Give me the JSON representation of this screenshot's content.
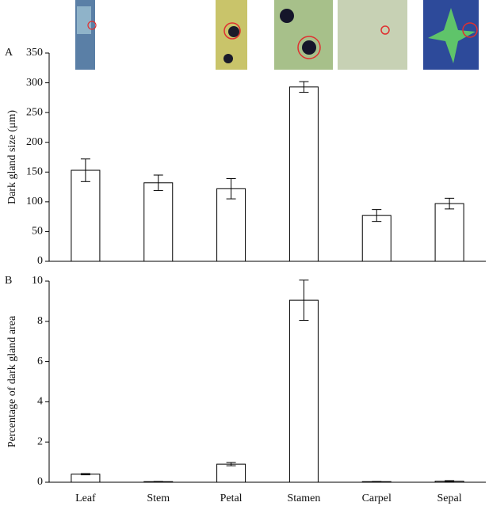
{
  "chart_data": [
    {
      "type": "bar",
      "label": "A",
      "ylabel": "Dark gland size (μm)",
      "values": [
        153,
        132,
        122,
        293,
        77,
        97
      ],
      "errors": [
        19,
        13,
        17,
        9,
        10,
        9
      ],
      "color": "#ffffff",
      "ylim": [
        0,
        350
      ],
      "yticks": [
        0,
        50,
        100,
        150,
        200,
        250,
        300,
        350
      ]
    },
    {
      "type": "bar",
      "label": "B",
      "ylabel": "Percentage of dark gland area",
      "categories": [
        "Leaf",
        "Stem",
        "Petal",
        "Stamen",
        "Carpel",
        "Sepal"
      ],
      "values": [
        0.4,
        0.03,
        0.9,
        9.05,
        0.03,
        0.05
      ],
      "errors": [
        0.03,
        0.01,
        0.08,
        1.0,
        0.01,
        0.03
      ],
      "color": "#ffffff",
      "ylim": [
        0,
        10
      ],
      "yticks": [
        0,
        2,
        4,
        6,
        8,
        10
      ]
    }
  ]
}
